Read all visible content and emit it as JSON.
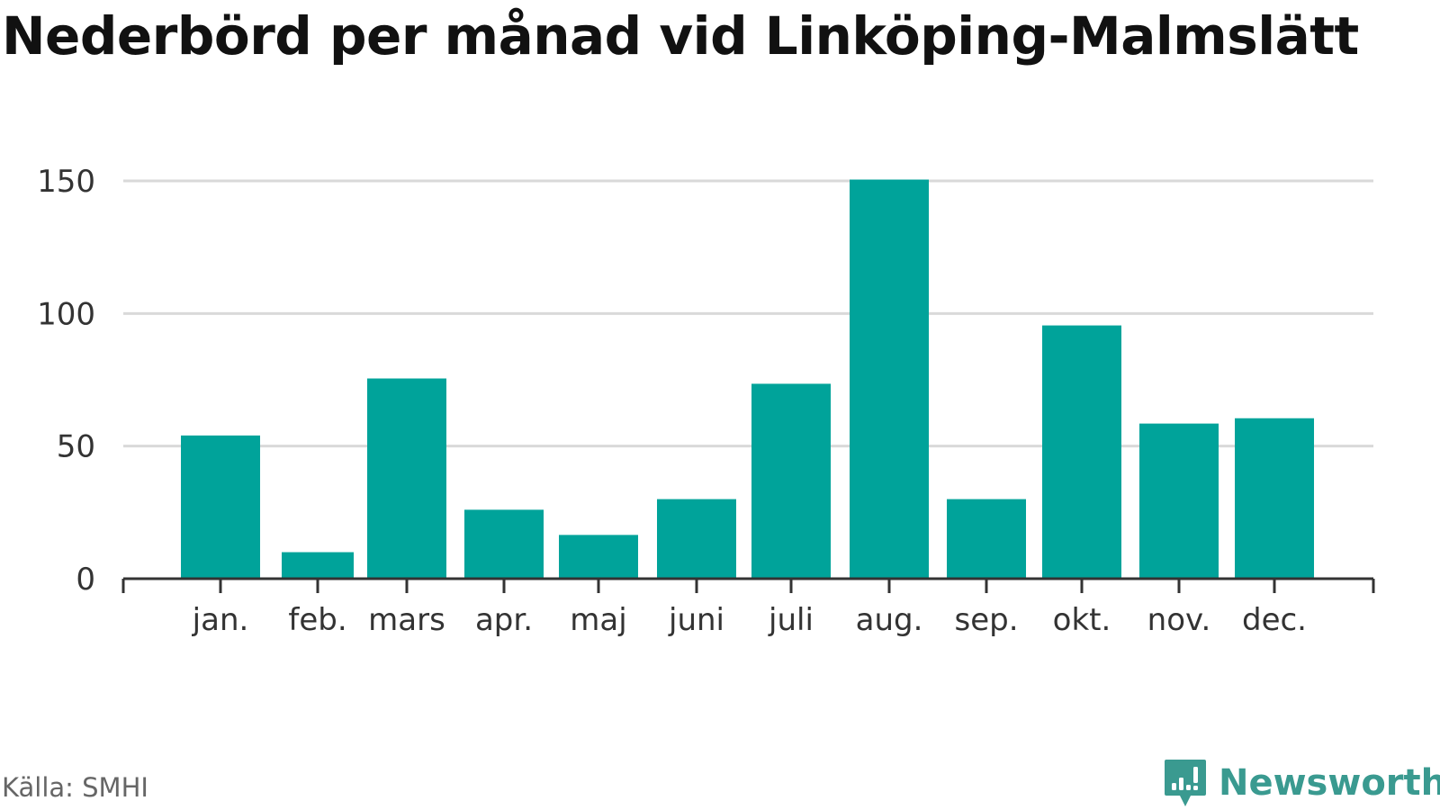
{
  "colors": {
    "bar": "#00a39a",
    "grid": "#d9d9d9",
    "axis": "#333333",
    "brand": "#3a9a90"
  },
  "title": "Nederbörd per månad vid Linköping-Malmslätt",
  "source": "Källa: SMHI",
  "brand": {
    "name": "Newsworthy",
    "icon": "bar-chart-speech-bubble-icon"
  },
  "chart_data": {
    "type": "bar",
    "title": "Nederbörd per månad vid Linköping-Malmslätt",
    "categories": [
      "jan.",
      "feb.",
      "mars",
      "apr.",
      "maj",
      "juni",
      "juli",
      "aug.",
      "sep.",
      "okt.",
      "nov.",
      "dec."
    ],
    "values": [
      54,
      10,
      75.5,
      26,
      16.5,
      30,
      73.5,
      150.5,
      30,
      95.5,
      58.5,
      60.5
    ],
    "yticks": [
      0,
      50,
      100,
      150
    ],
    "ylim": [
      0,
      150
    ],
    "xlabel": "",
    "ylabel": "",
    "grid": true,
    "legend": false
  }
}
